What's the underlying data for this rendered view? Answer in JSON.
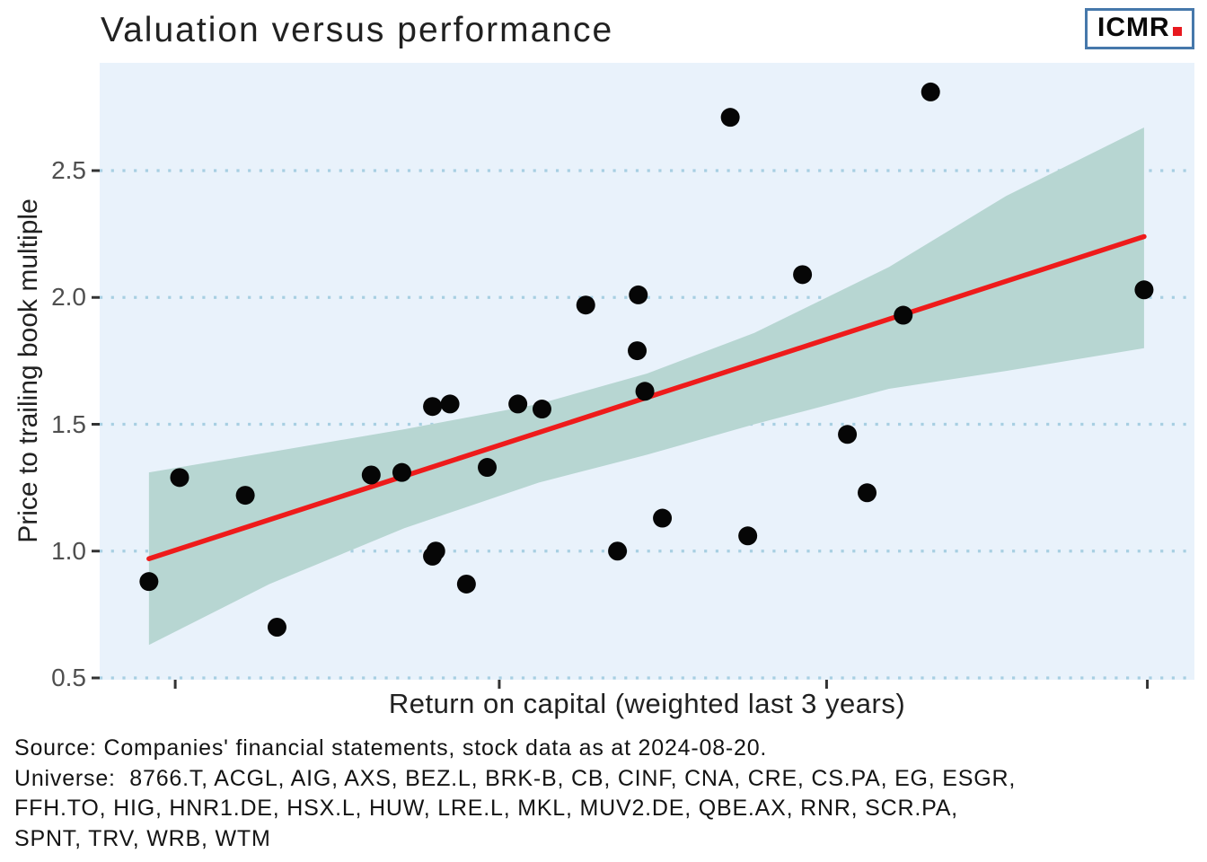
{
  "header": {
    "title": "Valuation versus performance",
    "logo_text": "ICMR"
  },
  "footer": {
    "source_line": "Source: Companies' financial statements, stock data as at 2024-08-20.",
    "universe_lines": [
      "Universe:  8766.T, ACGL, AIG, AXS, BEZ.L, BRK-B, CB, CINF, CNA, CRE, CS.PA, EG, ESGR,",
      "FFH.TO, HIG, HNR1.DE, HSX.L, HUW, LRE.L, MKL, MUV2.DE, QBE.AX, RNR, SCR.PA,",
      "SPNT, TRV, WRB, WTM"
    ]
  },
  "colors": {
    "panel_bg": "#e9f2fb",
    "gridline": "#a8cfe2",
    "band": "#b7d6d2",
    "regression": "#ee1b1b",
    "point": "#060606",
    "tick": "#333333",
    "logo_border": "#4678ab",
    "logo_dot": "#e8191f"
  },
  "chart_data": {
    "type": "scatter",
    "title": "Valuation versus performance",
    "xlabel": "Return on capital (weighted last 3 years)",
    "ylabel": "Price to trailing book multiple",
    "ylim": [
      0.5,
      2.93
    ],
    "grid": "dotted horizontal gridlines at each y tick",
    "legend": "none",
    "x_axis_note": "x tick marks are unlabeled in the figure; x values below are fractions of the x-axis width",
    "y_ticks": [
      {
        "label": "0.5",
        "value": 0.5
      },
      {
        "label": "1.0",
        "value": 1.0
      },
      {
        "label": "1.5",
        "value": 1.5
      },
      {
        "label": "2.0",
        "value": 2.0
      },
      {
        "label": "2.5",
        "value": 2.5
      }
    ],
    "x_tick_positions": [
      0.069,
      0.365,
      0.664,
      0.957
    ],
    "points": [
      {
        "x": 0.045,
        "y": 0.88
      },
      {
        "x": 0.073,
        "y": 1.29
      },
      {
        "x": 0.133,
        "y": 1.22
      },
      {
        "x": 0.162,
        "y": 0.7
      },
      {
        "x": 0.248,
        "y": 1.3
      },
      {
        "x": 0.276,
        "y": 1.31
      },
      {
        "x": 0.304,
        "y": 1.57
      },
      {
        "x": 0.32,
        "y": 1.58
      },
      {
        "x": 0.307,
        "y": 1.0
      },
      {
        "x": 0.304,
        "y": 0.98
      },
      {
        "x": 0.335,
        "y": 0.87
      },
      {
        "x": 0.354,
        "y": 1.33
      },
      {
        "x": 0.382,
        "y": 1.58
      },
      {
        "x": 0.404,
        "y": 1.56
      },
      {
        "x": 0.444,
        "y": 1.97
      },
      {
        "x": 0.473,
        "y": 1.0
      },
      {
        "x": 0.492,
        "y": 2.01
      },
      {
        "x": 0.491,
        "y": 1.79
      },
      {
        "x": 0.498,
        "y": 1.63
      },
      {
        "x": 0.514,
        "y": 1.13
      },
      {
        "x": 0.576,
        "y": 2.71
      },
      {
        "x": 0.592,
        "y": 1.06
      },
      {
        "x": 0.642,
        "y": 2.09
      },
      {
        "x": 0.683,
        "y": 1.46
      },
      {
        "x": 0.701,
        "y": 1.23
      },
      {
        "x": 0.734,
        "y": 1.93
      },
      {
        "x": 0.759,
        "y": 2.81
      },
      {
        "x": 0.954,
        "y": 2.03
      }
    ],
    "regression_line": {
      "x1": 0.045,
      "y1": 0.97,
      "x2": 0.954,
      "y2": 2.24
    },
    "confidence_band": [
      {
        "x": 0.045,
        "lo": 0.63,
        "hi": 1.31
      },
      {
        "x": 0.155,
        "lo": 0.87,
        "hi": 1.39
      },
      {
        "x": 0.278,
        "lo": 1.09,
        "hi": 1.48
      },
      {
        "x": 0.401,
        "lo": 1.27,
        "hi": 1.58
      },
      {
        "x": 0.5,
        "lo": 1.38,
        "hi": 1.7
      },
      {
        "x": 0.598,
        "lo": 1.5,
        "hi": 1.86
      },
      {
        "x": 0.721,
        "lo": 1.64,
        "hi": 2.12
      },
      {
        "x": 0.828,
        "lo": 1.71,
        "hi": 2.4
      },
      {
        "x": 0.954,
        "lo": 1.8,
        "hi": 2.67
      }
    ]
  }
}
